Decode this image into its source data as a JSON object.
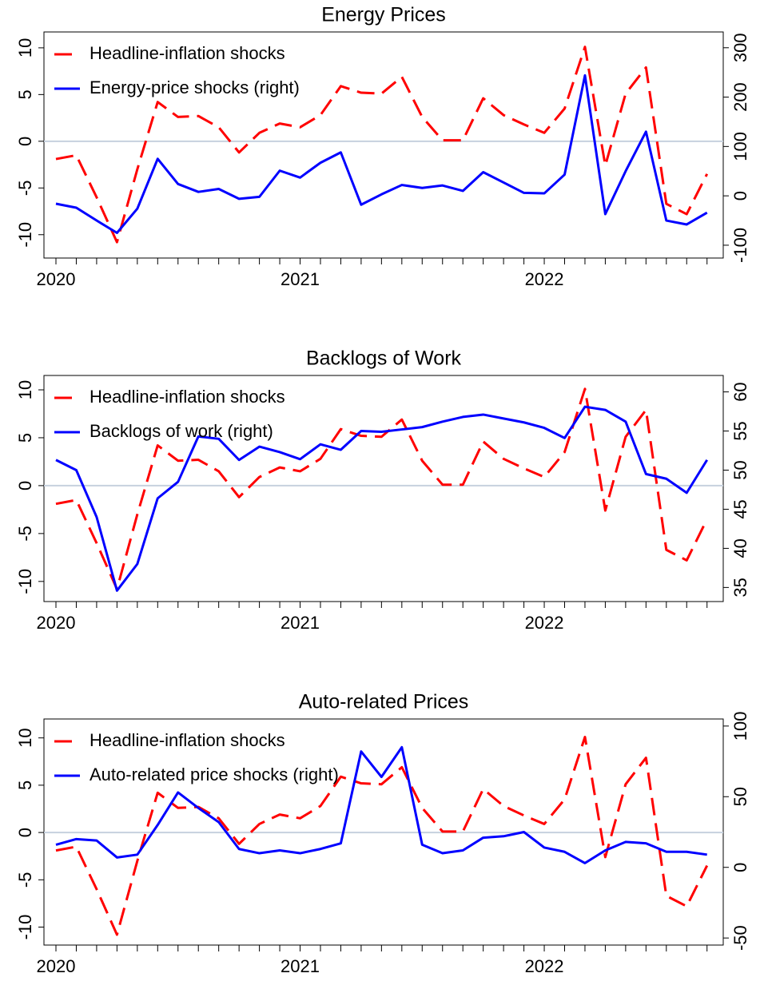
{
  "chart_data": [
    {
      "type": "line",
      "title": "Energy Prices",
      "categories": [
        "2020",
        null,
        null,
        null,
        null,
        null,
        null,
        null,
        null,
        null,
        null,
        null,
        "2021",
        null,
        null,
        null,
        null,
        null,
        null,
        null,
        null,
        null,
        null,
        null,
        "2022",
        null,
        null,
        null,
        null,
        null,
        null,
        null,
        null
      ],
      "series": [
        {
          "name": "Headline-inflation shocks",
          "color": "#ff0000",
          "dash": true,
          "values": [
            -1.9,
            -1.5,
            -6,
            -10.8,
            -3,
            4.2,
            2.6,
            2.7,
            1.5,
            -1.2,
            0.9,
            1.9,
            1.5,
            2.8,
            5.9,
            5.2,
            5.1,
            6.9,
            2.6,
            0.1,
            0.1,
            4.6,
            2.8,
            1.8,
            0.9,
            3.5,
            10.1,
            -2.6,
            5.1,
            7.9,
            -6.7,
            -7.8,
            -3.5
          ]
        },
        {
          "name": "Energy-price shocks (right)",
          "color": "#0000ff",
          "axis": "y2",
          "values": [
            -16,
            -24,
            -50,
            -75,
            -26,
            75,
            24,
            8,
            14,
            -6,
            -2,
            51,
            37,
            67,
            88,
            -18,
            3,
            22,
            16,
            21,
            10,
            48,
            27,
            6,
            5,
            43,
            244,
            -37,
            50,
            130,
            -50,
            -58,
            -34
          ]
        }
      ],
      "ylim": [
        -12.5,
        11.7
      ],
      "yticks": [
        -10,
        -5,
        0,
        5,
        10
      ],
      "y2lim": [
        -126,
        332
      ],
      "y2ticks": [
        -100,
        0,
        100,
        200,
        300
      ],
      "yline": 0
    },
    {
      "type": "line",
      "title": "Backlogs of Work",
      "categories": [
        "2020",
        null,
        null,
        null,
        null,
        null,
        null,
        null,
        null,
        null,
        null,
        null,
        "2021",
        null,
        null,
        null,
        null,
        null,
        null,
        null,
        null,
        null,
        null,
        null,
        "2022",
        null,
        null,
        null,
        null,
        null,
        null,
        null,
        null
      ],
      "series": [
        {
          "name": "Headline-inflation shocks",
          "color": "#ff0000",
          "dash": true,
          "values": [
            -1.9,
            -1.5,
            -6,
            -10.8,
            -3,
            4.2,
            2.6,
            2.7,
            1.5,
            -1.2,
            0.9,
            1.9,
            1.5,
            2.8,
            5.9,
            5.2,
            5.1,
            6.9,
            2.6,
            0.1,
            0.1,
            4.6,
            2.8,
            1.8,
            0.9,
            3.5,
            10.1,
            -2.6,
            5.1,
            7.9,
            -6.7,
            -7.8,
            -3.5
          ]
        },
        {
          "name": "Backlogs of work (right)",
          "color": "#0000ff",
          "axis": "y2",
          "values": [
            51.3,
            50,
            44,
            34.6,
            38,
            46.4,
            48.5,
            54.3,
            54,
            51.3,
            53,
            52.3,
            51.4,
            53.3,
            52.6,
            55,
            54.9,
            55.2,
            55.5,
            56.2,
            56.8,
            57.1,
            56.6,
            56.1,
            55.4,
            54.1,
            58.1,
            57.7,
            56.2,
            49.5,
            48.9,
            47.1,
            51.3
          ]
        }
      ],
      "ylim": [
        -12.1,
        11.5
      ],
      "yticks": [
        -10,
        -5,
        0,
        5,
        10
      ],
      "y2lim": [
        33.2,
        62.1
      ],
      "y2ticks": [
        35,
        40,
        45,
        50,
        55,
        60
      ],
      "yline": 0
    },
    {
      "type": "line",
      "title": "Auto-related Prices",
      "categories": [
        "2020",
        null,
        null,
        null,
        null,
        null,
        null,
        null,
        null,
        null,
        null,
        null,
        "2021",
        null,
        null,
        null,
        null,
        null,
        null,
        null,
        null,
        null,
        null,
        null,
        "2022",
        null,
        null,
        null,
        null,
        null,
        null,
        null,
        null
      ],
      "series": [
        {
          "name": "Headline-inflation shocks",
          "color": "#ff0000",
          "dash": true,
          "values": [
            -1.9,
            -1.5,
            -6,
            -10.8,
            -3,
            4.2,
            2.6,
            2.7,
            1.5,
            -1.2,
            0.9,
            1.9,
            1.5,
            2.8,
            5.9,
            5.2,
            5.1,
            6.9,
            2.6,
            0.1,
            0.1,
            4.6,
            2.8,
            1.8,
            0.9,
            3.5,
            10.1,
            -2.6,
            5.1,
            7.9,
            -6.7,
            -7.8,
            -3.5
          ]
        },
        {
          "name": "Auto-related price shocks (right)",
          "color": "#0000ff",
          "axis": "y2",
          "values": [
            16,
            20,
            19,
            7,
            9,
            30,
            53,
            42,
            32,
            13,
            10,
            12,
            10,
            13,
            17,
            82,
            64,
            85,
            16,
            10,
            12,
            21,
            22,
            25,
            14,
            11,
            3,
            12,
            18,
            17,
            11,
            11,
            9
          ]
        }
      ],
      "ylim": [
        -11.9,
        12.0
      ],
      "yticks": [
        -10,
        -5,
        0,
        5,
        10
      ],
      "y2lim": [
        -55,
        105
      ],
      "y2ticks": [
        -50,
        0,
        50,
        100
      ],
      "yline": 0
    }
  ]
}
